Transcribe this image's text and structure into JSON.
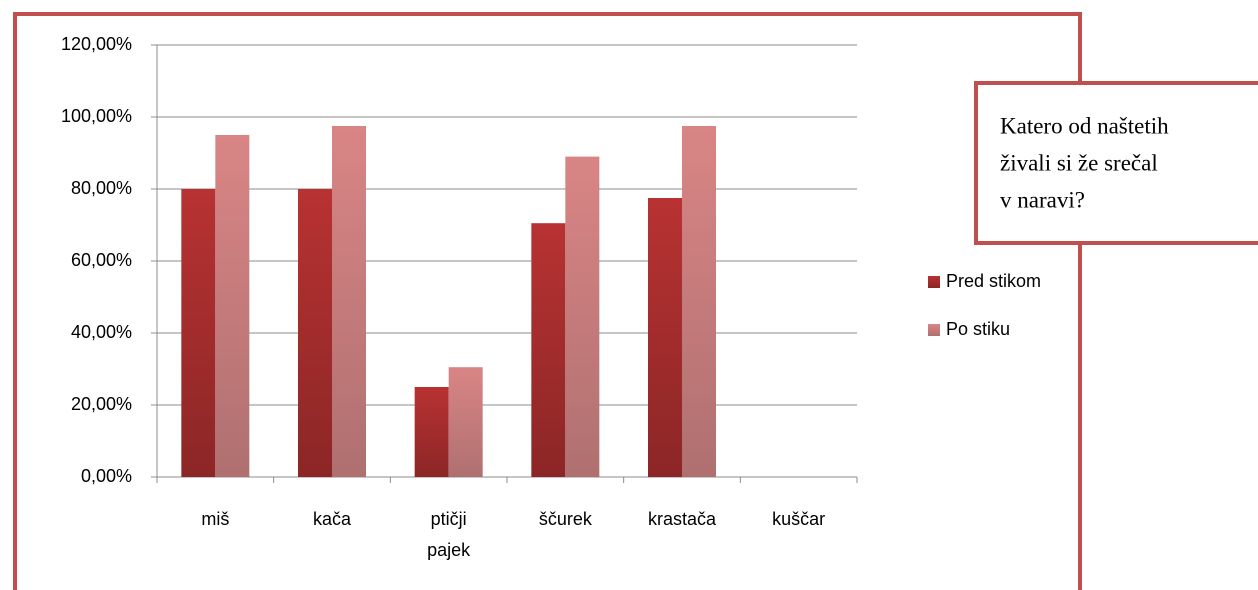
{
  "chart_data": {
    "type": "bar",
    "annotation": [
      "Katero od naštetih",
      "živali si že srečal",
      "v naravi?"
    ],
    "categories": [
      "miš",
      "kača",
      "ptičji pajek",
      "ščurek",
      "krastača",
      "kuščar"
    ],
    "series": [
      {
        "name": "Pred stikom",
        "color": "#b83232",
        "values": [
          80,
          80,
          25,
          70.5,
          77.5,
          0
        ]
      },
      {
        "name": "Po stiku",
        "color": "#d98585",
        "values": [
          95,
          97.5,
          30.5,
          89,
          97.5,
          0
        ]
      }
    ],
    "ylim": [
      0,
      120
    ],
    "yticks": [
      {
        "value": 0,
        "label": "0,00%"
      },
      {
        "value": 20,
        "label": "20,00%"
      },
      {
        "value": 40,
        "label": "40,00%"
      },
      {
        "value": 60,
        "label": "60,00%"
      },
      {
        "value": 80,
        "label": "80,00%"
      },
      {
        "value": 100,
        "label": "100,00%"
      },
      {
        "value": 120,
        "label": "120,00%"
      }
    ],
    "grid": true,
    "legend": "right"
  }
}
